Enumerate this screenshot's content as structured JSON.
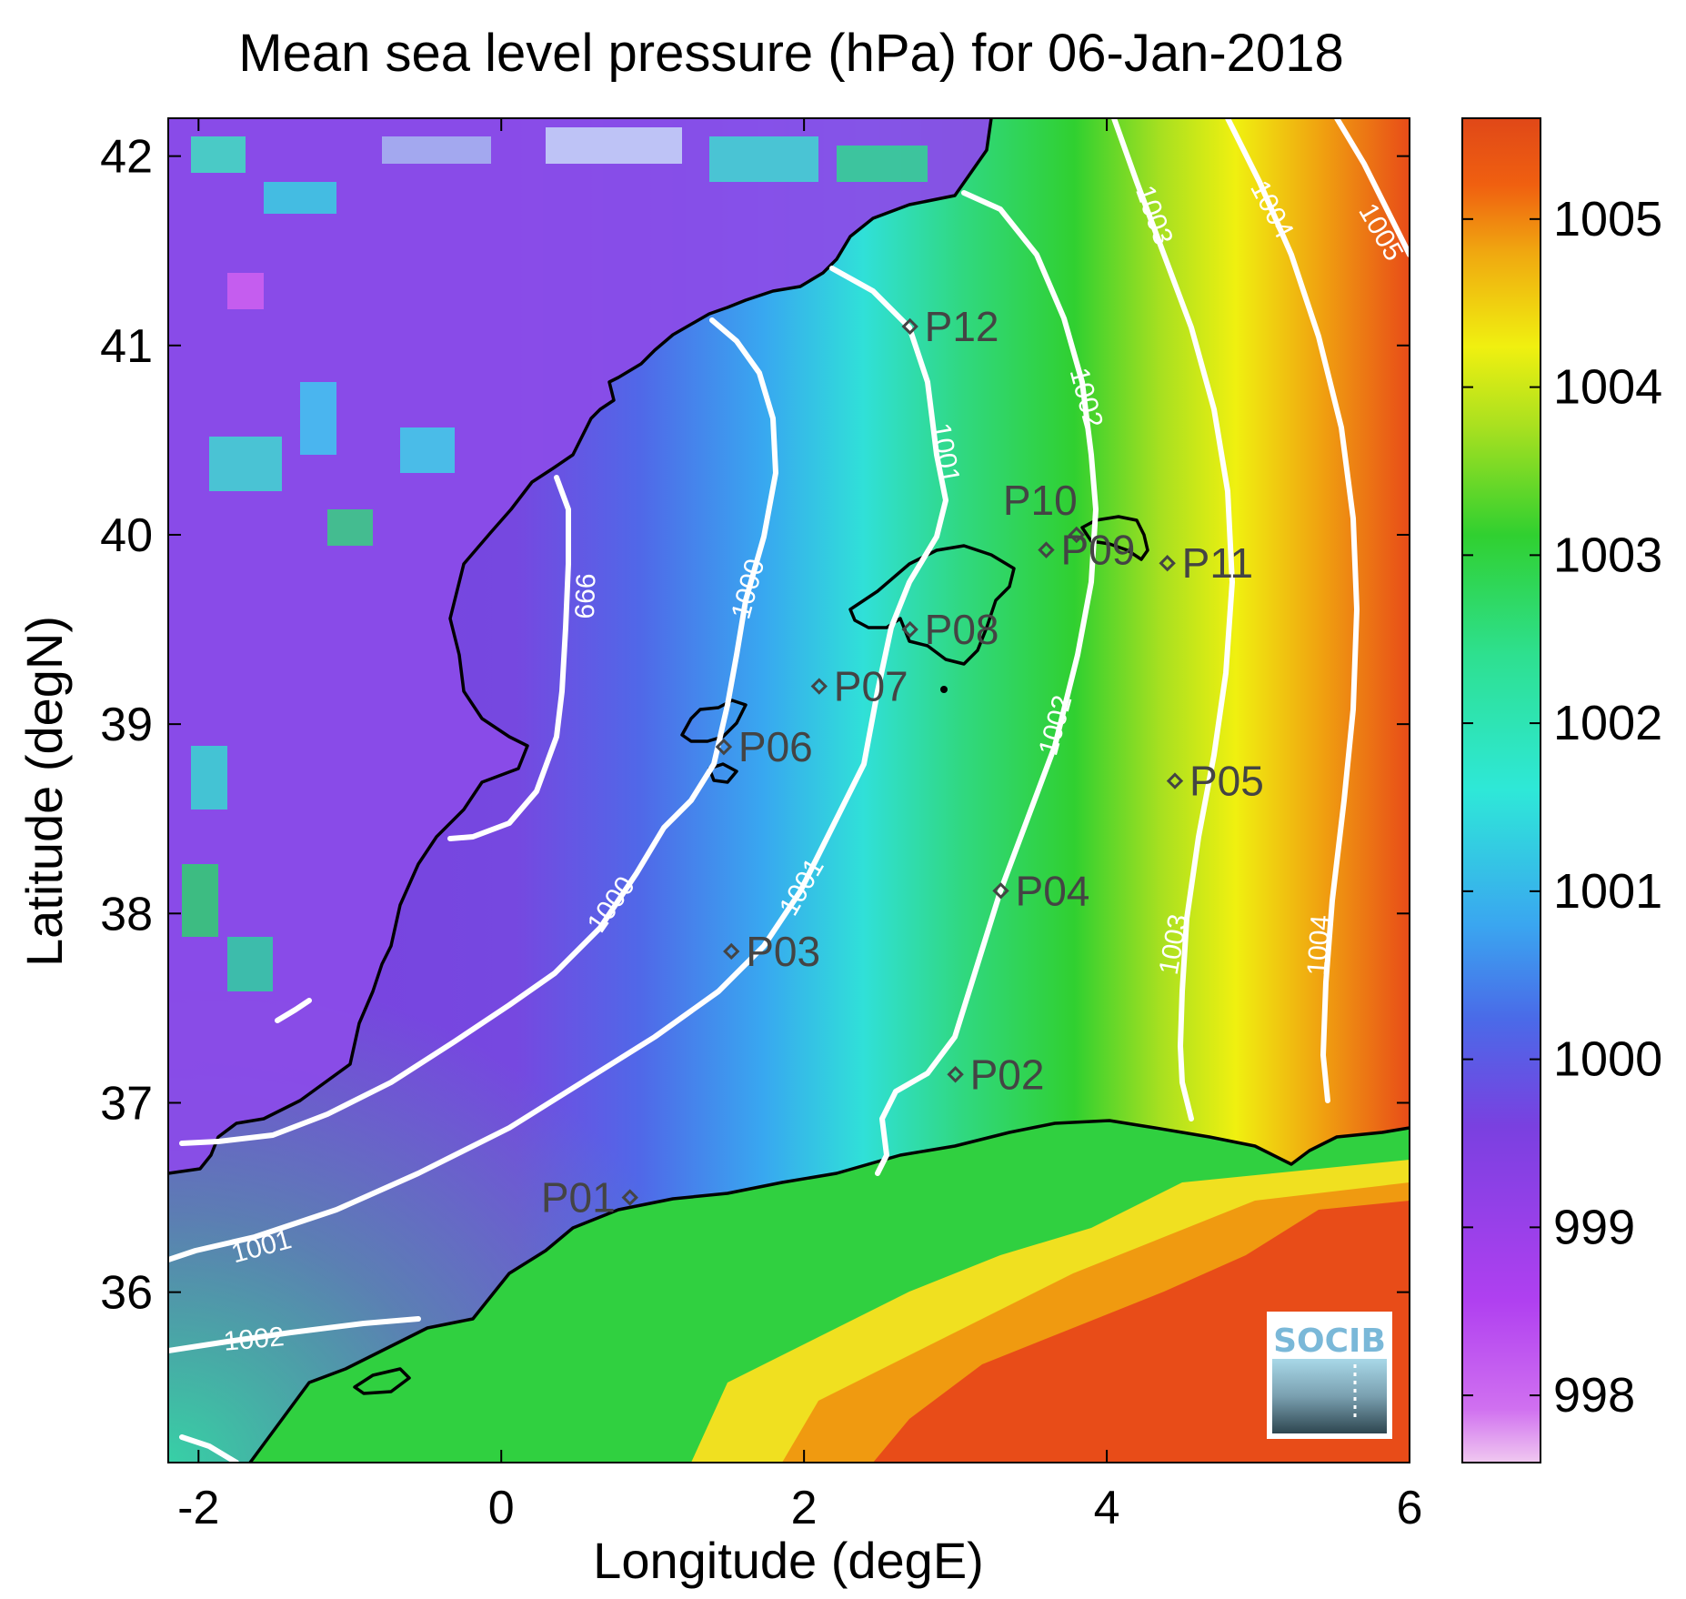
{
  "title": "Mean sea level pressure (hPa) for 06-Jan-2018",
  "xlabel": "Longitude (degE)",
  "ylabel": "Latitude (degN)",
  "x_ticks": [
    "-2",
    "0",
    "2",
    "4",
    "6"
  ],
  "y_ticks": [
    "36",
    "37",
    "38",
    "39",
    "40",
    "41",
    "42"
  ],
  "colorbar_ticks": [
    "998",
    "999",
    "1000",
    "1001",
    "1002",
    "1003",
    "1004",
    "1005"
  ],
  "contour_labels": {
    "c999": "999",
    "c1000a": "1000",
    "c1000b": "1000",
    "c1001a": "1001",
    "c1001b": "1001",
    "c1001c": "1001",
    "c1002a": "1002",
    "c1002b": "1002",
    "c1002c": "1002",
    "c1003a": "1003",
    "c1003b": "1003",
    "c1004a": "1004",
    "c1004b": "1004",
    "c1005": "1005"
  },
  "stations": [
    {
      "id": "P01",
      "label": "P01",
      "lon": 0.85,
      "lat": 36.5
    },
    {
      "id": "P02",
      "label": "P02",
      "lon": 3.0,
      "lat": 37.15
    },
    {
      "id": "P03",
      "label": "P03",
      "lon": 1.52,
      "lat": 37.8
    },
    {
      "id": "P04",
      "label": "P04",
      "lon": 3.3,
      "lat": 38.12
    },
    {
      "id": "P05",
      "label": "P05",
      "lon": 4.45,
      "lat": 38.7
    },
    {
      "id": "P06",
      "label": "P06",
      "lon": 1.47,
      "lat": 38.88
    },
    {
      "id": "P07",
      "label": "P07",
      "lon": 2.1,
      "lat": 39.2
    },
    {
      "id": "P08",
      "label": "P08",
      "lon": 2.7,
      "lat": 39.5
    },
    {
      "id": "P09",
      "label": "P09",
      "lon": 3.6,
      "lat": 39.92
    },
    {
      "id": "P10",
      "label": "P10",
      "lon": 3.8,
      "lat": 40.0
    },
    {
      "id": "P11",
      "label": "P11",
      "lon": 4.4,
      "lat": 39.85
    },
    {
      "id": "P12",
      "label": "P12",
      "lon": 2.7,
      "lat": 41.1
    }
  ],
  "logo": "SOCIB",
  "chart_data": {
    "type": "heatmap",
    "title": "Mean sea level pressure (hPa) for 06-Jan-2018",
    "xlabel": "Longitude (degE)",
    "ylabel": "Latitude (degN)",
    "xlim": [
      -2.2,
      6.0
    ],
    "ylim": [
      35.1,
      42.2
    ],
    "colorbar": {
      "range": [
        997.6,
        1005.6
      ],
      "ticks": [
        998,
        999,
        1000,
        1001,
        1002,
        1003,
        1004,
        1005
      ],
      "colormap": "jet-like: violet (low) to blue, cyan, green, yellow, orange-red (high)"
    },
    "contour_levels": [
      999,
      1000,
      1001,
      1002,
      1003,
      1004,
      1005
    ],
    "colors": {
      "contours": "#ffffff",
      "coastline": "#000000",
      "stations": "#444444"
    }
  }
}
